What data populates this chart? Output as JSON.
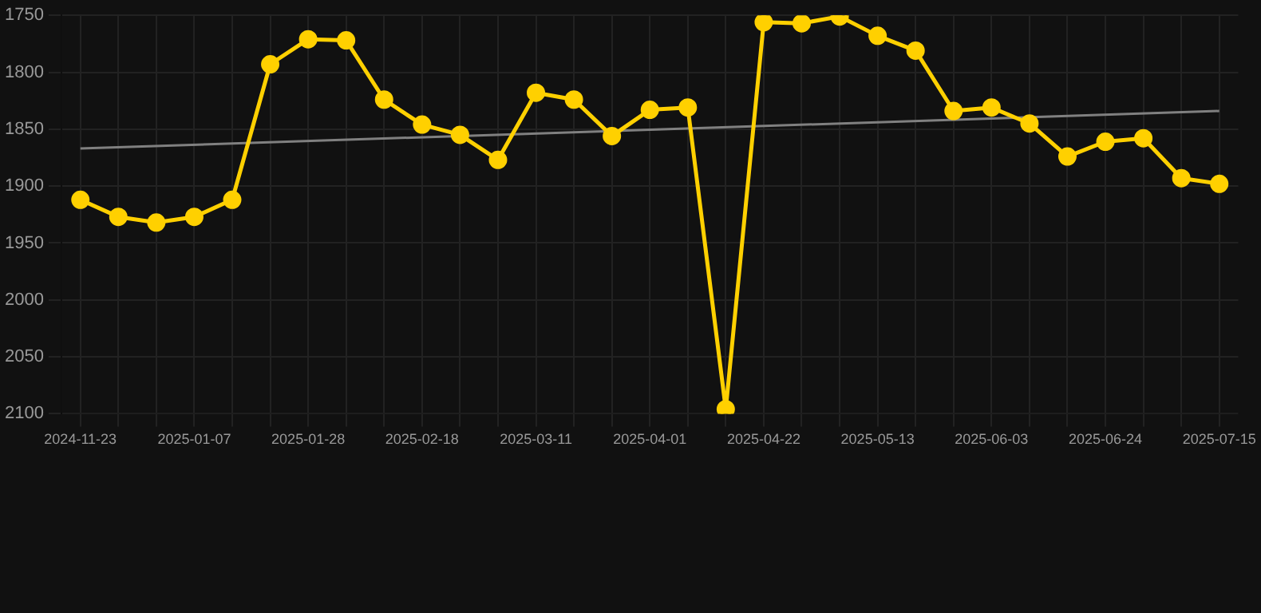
{
  "chart_data": {
    "type": "line",
    "categories": [
      "2024-11-23",
      null,
      null,
      "2025-01-07",
      null,
      null,
      "2025-01-28",
      null,
      null,
      "2025-02-18",
      null,
      null,
      "2025-03-11",
      null,
      null,
      "2025-04-01",
      null,
      null,
      "2025-04-22",
      null,
      null,
      "2025-05-13",
      null,
      null,
      "2025-06-03",
      null,
      null,
      "2025-06-24",
      null,
      null,
      "2025-07-15"
    ],
    "series": [
      {
        "color": "#ffd000",
        "marker": "circle",
        "values": [
          1912,
          1927,
          1932,
          1927,
          1912,
          1793,
          1771,
          1772,
          1824,
          1846,
          1855,
          1877,
          1818,
          1824,
          1856,
          1833,
          1831,
          2096,
          1756,
          1757,
          1751,
          1768,
          1781,
          1834,
          1831,
          1845,
          1874,
          1861,
          1858,
          1893,
          1898
        ]
      },
      {
        "color": "#808080",
        "marker": "none",
        "values": [
          1867,
          null,
          null,
          null,
          null,
          null,
          null,
          null,
          null,
          null,
          null,
          null,
          null,
          null,
          null,
          null,
          null,
          null,
          null,
          null,
          null,
          null,
          null,
          null,
          null,
          null,
          null,
          null,
          null,
          null,
          1834
        ]
      }
    ],
    "ylim": [
      2100,
      1750
    ],
    "yticks": [
      1750,
      1800,
      1850,
      1900,
      1950,
      2000,
      2050,
      2100
    ],
    "grid": true,
    "legend": false
  }
}
